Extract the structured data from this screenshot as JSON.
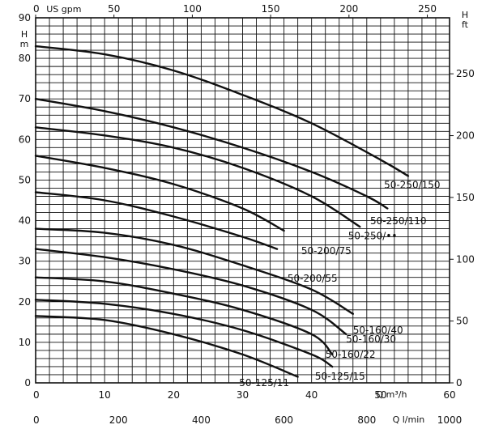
{
  "chart_data": {
    "type": "line",
    "grid": true,
    "x_axis": {
      "unit_label": "Q m³/h",
      "range": [
        0,
        60
      ],
      "ticks": [
        0,
        10,
        20,
        30,
        40,
        50,
        60
      ]
    },
    "x_axis_secondary_bottom": {
      "unit_label": "Q l/min",
      "range": [
        0,
        1000
      ],
      "ticks": [
        0,
        200,
        400,
        600,
        800,
        1000
      ]
    },
    "x_axis_top": {
      "unit_label": "US gpm",
      "range": [
        0,
        264.2
      ],
      "ticks": [
        0,
        50,
        100,
        150,
        200,
        250
      ]
    },
    "y_axis_left": {
      "label_top": "H",
      "label_bottom": "m",
      "range": [
        0,
        90
      ],
      "ticks": [
        0,
        10,
        20,
        30,
        40,
        50,
        60,
        70,
        80,
        90
      ]
    },
    "y_axis_right": {
      "label_top": "H",
      "label_bottom": "ft",
      "range": [
        0,
        295.3
      ],
      "ticks": [
        0,
        50,
        100,
        150,
        200,
        250
      ]
    },
    "series": [
      {
        "name": "50-250/150",
        "x": [
          0,
          10,
          20,
          30,
          40,
          50,
          54
        ],
        "y": [
          83,
          81,
          77,
          71,
          64,
          55,
          51
        ]
      },
      {
        "name": "50-250/110",
        "x": [
          0,
          10,
          20,
          30,
          40,
          48,
          51
        ],
        "y": [
          70,
          67,
          63,
          58,
          52,
          46,
          43
        ]
      },
      {
        "name": "50-250/••",
        "x": [
          0,
          10,
          20,
          30,
          40,
          47
        ],
        "y": [
          63,
          61,
          58,
          53,
          46,
          38.5
        ]
      },
      {
        "name": "50-200/75",
        "x": [
          0,
          10,
          20,
          30,
          36
        ],
        "y": [
          56,
          53,
          49,
          43,
          37.5
        ]
      },
      {
        "name": "50-200/55",
        "x": [
          0,
          10,
          20,
          30,
          35
        ],
        "y": [
          47,
          45,
          41,
          36,
          33
        ]
      },
      {
        "name": "50-160/40",
        "x": [
          0,
          10,
          20,
          30,
          40,
          46
        ],
        "y": [
          38,
          37,
          34,
          29,
          23,
          17
        ]
      },
      {
        "name": "50-160/30",
        "x": [
          0,
          10,
          20,
          30,
          40,
          45
        ],
        "y": [
          33,
          31,
          28,
          24,
          18,
          12
        ]
      },
      {
        "name": "50-160/22",
        "x": [
          0,
          10,
          20,
          30,
          40,
          43
        ],
        "y": [
          26,
          25,
          22,
          18,
          12,
          7
        ]
      },
      {
        "name": "50-125/15",
        "x": [
          0,
          10,
          20,
          30,
          40,
          43
        ],
        "y": [
          20.5,
          19.5,
          17,
          13,
          7,
          4
        ]
      },
      {
        "name": "50-125/11",
        "x": [
          0,
          10,
          20,
          30,
          38
        ],
        "y": [
          16.5,
          15.5,
          12,
          7,
          1.5
        ]
      }
    ],
    "curve_labels": [
      {
        "text": "50-250/150",
        "x": 50.5,
        "y": 48.8
      },
      {
        "text": "50-250/110",
        "x": 48.5,
        "y": 39.9
      },
      {
        "text": "50-250/••",
        "x": 45.3,
        "y": 36.2
      },
      {
        "text": "50-200/75",
        "x": 38.5,
        "y": 32.5
      },
      {
        "text": "50-200/55",
        "x": 36.5,
        "y": 25.7
      },
      {
        "text": "50-160/40",
        "x": 46,
        "y": 13
      },
      {
        "text": "50-160/30",
        "x": 45,
        "y": 10.8
      },
      {
        "text": "50-160/22",
        "x": 42,
        "y": 7
      },
      {
        "text": "50-125/15",
        "x": 40.5,
        "y": 1.6
      },
      {
        "text": "50-125/11",
        "x": 29.5,
        "y": 0
      }
    ]
  }
}
